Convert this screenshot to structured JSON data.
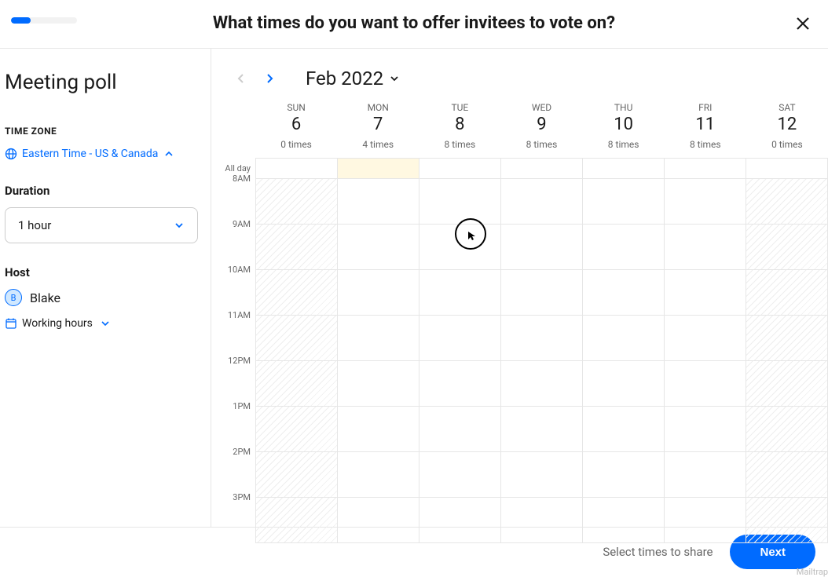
{
  "header": {
    "title": "What times do you want to offer invitees to vote on?",
    "progress_percent": 30
  },
  "sidebar": {
    "title": "Meeting poll",
    "timezone_label": "TIME ZONE",
    "timezone_value": "Eastern Time - US & Canada",
    "duration_label": "Duration",
    "duration_value": "1 hour",
    "host_label": "Host",
    "host_initial": "B",
    "host_name": "Blake",
    "working_hours_label": "Working hours"
  },
  "calendar": {
    "month_label": "Feb 2022",
    "all_day_label": "All day",
    "days": [
      {
        "dow": "SUN",
        "num": "6",
        "count": "0 times",
        "hatched": true,
        "highlight": false
      },
      {
        "dow": "MON",
        "num": "7",
        "count": "4 times",
        "hatched": false,
        "highlight": true
      },
      {
        "dow": "TUE",
        "num": "8",
        "count": "8 times",
        "hatched": false,
        "highlight": false
      },
      {
        "dow": "WED",
        "num": "9",
        "count": "8 times",
        "hatched": false,
        "highlight": false
      },
      {
        "dow": "THU",
        "num": "10",
        "count": "8 times",
        "hatched": false,
        "highlight": false
      },
      {
        "dow": "FRI",
        "num": "11",
        "count": "8 times",
        "hatched": false,
        "highlight": false
      },
      {
        "dow": "SAT",
        "num": "12",
        "count": "0 times",
        "hatched": true,
        "highlight": false
      }
    ],
    "hours": [
      "8AM",
      "9AM",
      "10AM",
      "11AM",
      "12PM",
      "1PM",
      "2PM",
      "3PM"
    ]
  },
  "footer": {
    "hint": "Select times to share",
    "next_label": "Next"
  },
  "watermark": "Mailtrap",
  "colors": {
    "accent": "#006bff",
    "border": "#e6e6e6",
    "muted": "#666666",
    "highlight": "#fff8e1"
  }
}
